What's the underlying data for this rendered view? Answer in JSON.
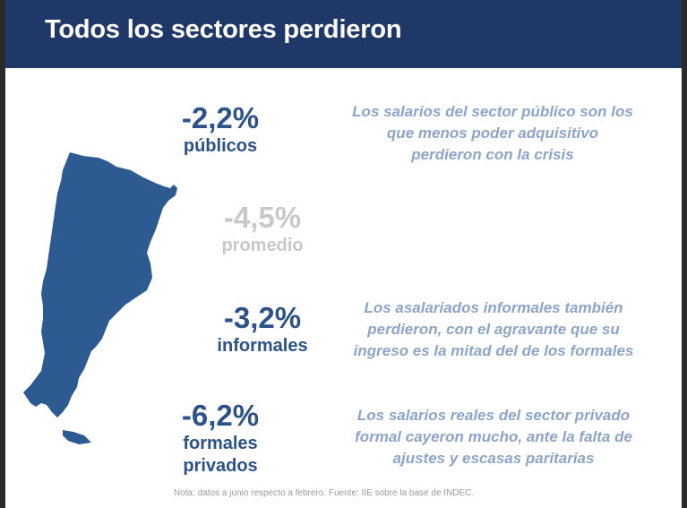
{
  "title": "Todos los sectores perdieron",
  "stats": [
    {
      "value": "-2,2%",
      "label": "públicos"
    },
    {
      "value": "-4,5%",
      "label": "promedio"
    },
    {
      "value": "-3,2%",
      "label": "informales"
    },
    {
      "value": "-6,2%",
      "label_lines": [
        "formales",
        "privados"
      ]
    }
  ],
  "descriptions": [
    {
      "lines": [
        "Los salarios del sector público son los",
        "que menos poder adquisitivo",
        "perdieron con la crisis"
      ]
    },
    {
      "lines": [
        "Los asalariados informales también",
        "perdieron, con el agravante que su",
        "ingreso es la mitad del de los formales"
      ]
    },
    {
      "lines": [
        "Los salarios reales del sector privado",
        "formal cayeron mucho, ante la falta de",
        "ajustes y escasas paritarias"
      ]
    }
  ],
  "note": "Nota: datos a junio respecto a febrero. Fuente: IIE sobre la base de INDEC.",
  "colors": {
    "header_bg": "#1f3868",
    "stat_dark": "#2c5287",
    "stat_grey": "#c8c8c8",
    "description": "#8ea4c8",
    "map_fill": "#2e5a92"
  },
  "icons": {
    "map": "argentina-map-silhouette"
  }
}
